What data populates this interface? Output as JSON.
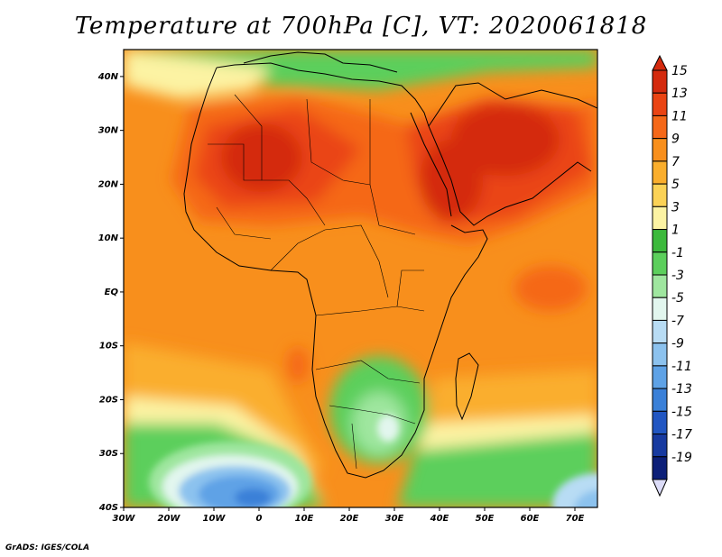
{
  "title": "Temperature at 700hPa [C], VT: 2020061818",
  "credit": "GrADS: IGES/COLA",
  "map": {
    "projection": "lat-lon",
    "lon_range": [
      -30,
      75
    ],
    "lat_range": [
      -40,
      45
    ],
    "variable": "Temperature at 700hPa",
    "units": "C",
    "valid_time": "2020061818"
  },
  "lat_ticks": [
    "40N",
    "30N",
    "20N",
    "10N",
    "EQ",
    "10S",
    "20S",
    "30S",
    "40S"
  ],
  "lon_ticks": [
    "30W",
    "20W",
    "10W",
    "0",
    "10E",
    "20E",
    "30E",
    "40E",
    "50E",
    "60E",
    "70E"
  ],
  "colorbar": {
    "labels": [
      "15",
      "13",
      "11",
      "9",
      "7",
      "5",
      "3",
      "1",
      "-1",
      "-3",
      "-5",
      "-7",
      "-9",
      "-11",
      "-13",
      "-15",
      "-17",
      "-19"
    ],
    "colors": [
      "#d42a0e",
      "#ea4413",
      "#f56818",
      "#f88f1c",
      "#faae2d",
      "#fbd256",
      "#fcf3a3",
      "#3cb93c",
      "#5ccf5c",
      "#9fe69f",
      "#e2f6ee",
      "#b8dcf4",
      "#8cc2ee",
      "#5ea2e6",
      "#3a80d8",
      "#2156c2",
      "#173aa0",
      "#0c1f78",
      "#dcdcf8"
    ]
  }
}
